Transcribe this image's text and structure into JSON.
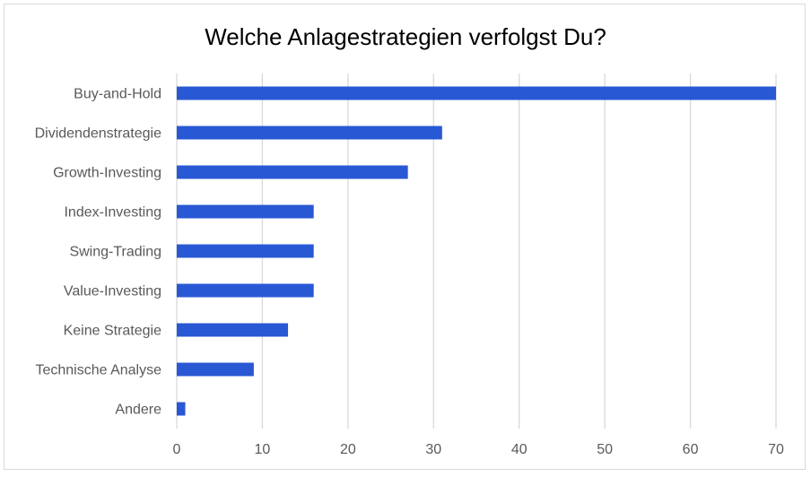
{
  "chart_data": {
    "type": "bar",
    "orientation": "horizontal",
    "title": "Welche Anlagestrategien verfolgst Du?",
    "categories": [
      "Andere",
      "Technische Analyse",
      "Keine Strategie",
      "Value-Investing",
      "Swing-Trading",
      "Index-Investing",
      "Growth-Investing",
      "Dividendenstrategie",
      "Buy-and-Hold"
    ],
    "values": [
      1,
      9,
      13,
      16,
      16,
      16,
      27,
      31,
      70
    ],
    "xlim": [
      0,
      70
    ],
    "xticks": [
      0,
      10,
      20,
      30,
      40,
      50,
      60,
      70
    ],
    "grid": true,
    "bar_color": "#2958d4",
    "xlabel": "",
    "ylabel": ""
  }
}
